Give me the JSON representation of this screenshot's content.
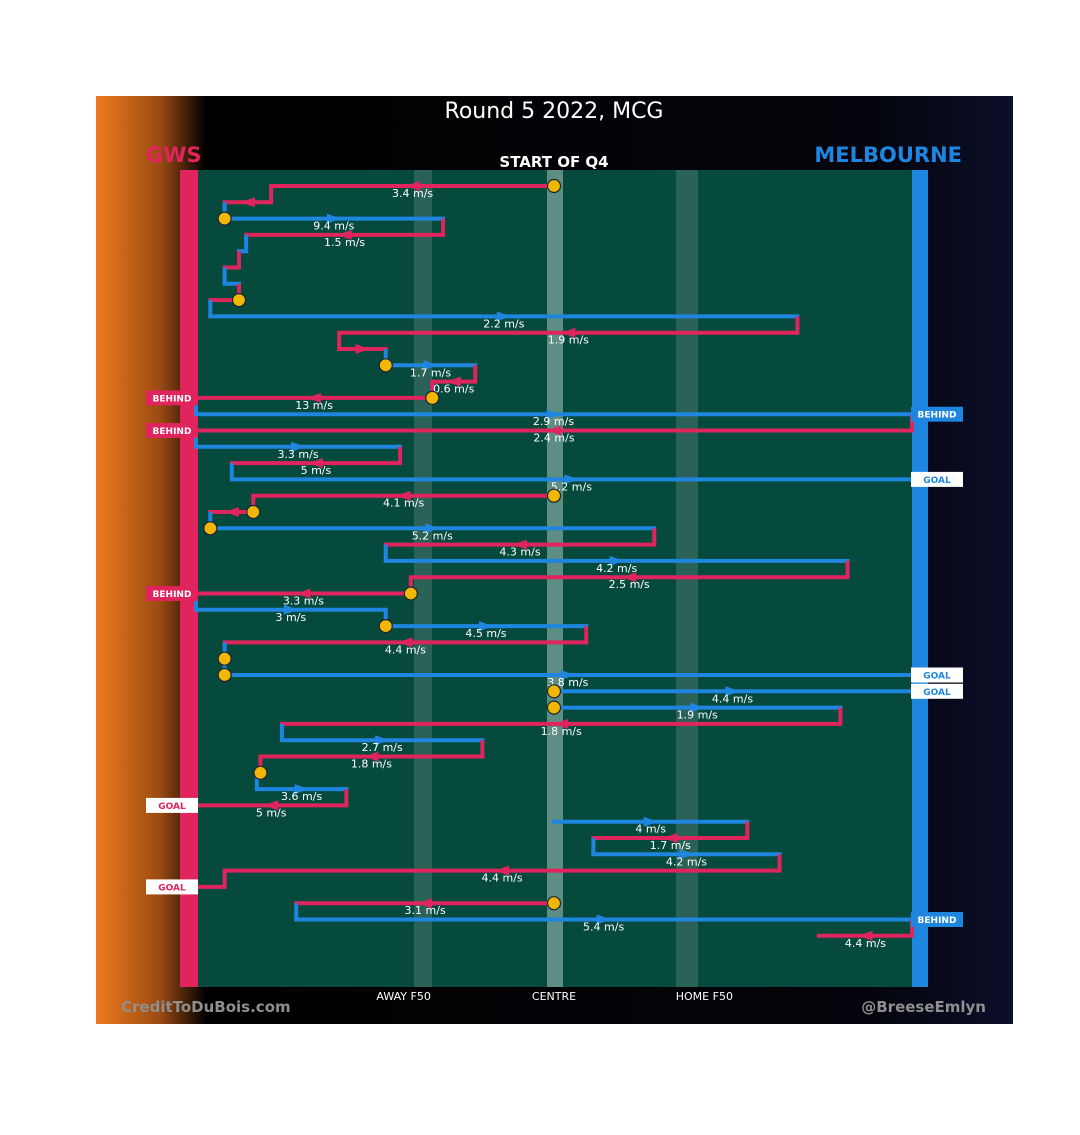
{
  "chart_data": {
    "type": "line",
    "title": "Round 5 2022, MCG",
    "subtitle": "START OF Q4",
    "teams": {
      "left": {
        "name": "GWS",
        "color": "#e0245e"
      },
      "right": {
        "name": "MELBOURNE",
        "color": "#1f86e0"
      }
    },
    "field_color": "#064a3e",
    "xlabel": "",
    "ylabel": "",
    "xlim": [
      0,
      100
    ],
    "x_ticks": [
      {
        "label": "AWAY F50",
        "x": 29
      },
      {
        "label": "CENTRE",
        "x": 50
      },
      {
        "label": "HOME F50",
        "x": 71
      }
    ],
    "grid": false,
    "credits": {
      "left": "CreditToDuBois.com",
      "right": "@BreeseEmlyn"
    },
    "series": [
      {
        "name": "GWS",
        "team": "left"
      },
      {
        "name": "MELBOURNE",
        "team": "right"
      }
    ],
    "chains": [
      {
        "team": "left",
        "from": 50,
        "to": 10.5,
        "speed_label": "3.4 m/s",
        "start_marker": true
      },
      {
        "team": "left",
        "from": 10.5,
        "to": 4,
        "speed_label": "",
        "start_marker": false
      },
      {
        "team": "right",
        "from": 4,
        "to": 34.5,
        "speed_label": "9.4 m/s",
        "start_marker": true
      },
      {
        "team": "left",
        "from": 34.5,
        "to": 7,
        "speed_label": "1.5 m/s",
        "start_marker": false
      },
      {
        "team": "right",
        "from": 7,
        "to": 6,
        "speed_label": "",
        "start_marker": false
      },
      {
        "team": "left",
        "from": 6,
        "to": 4,
        "speed_label": "",
        "start_marker": false
      },
      {
        "team": "right",
        "from": 4,
        "to": 6,
        "speed_label": "",
        "start_marker": false
      },
      {
        "team": "left",
        "from": 6,
        "to": 2,
        "speed_label": "",
        "start_marker": true
      },
      {
        "team": "right",
        "from": 2,
        "to": 84,
        "speed_label": "2.2 m/s",
        "start_marker": false
      },
      {
        "team": "left",
        "from": 84,
        "to": 20,
        "speed_label": "1.9 m/s",
        "start_marker": false
      },
      {
        "team": "left",
        "from": 20,
        "to": 26.5,
        "speed_label": "",
        "start_marker": false
      },
      {
        "team": "right",
        "from": 26.5,
        "to": 39,
        "speed_label": "1.7 m/s",
        "start_marker": true
      },
      {
        "team": "left",
        "from": 39,
        "to": 33,
        "speed_label": "0.6 m/s",
        "start_marker": false
      },
      {
        "team": "left",
        "from": 33,
        "to": -1,
        "speed_label": "13 m/s",
        "start_marker": true,
        "end_badge": "BEHIND"
      },
      {
        "team": "right",
        "from": 0,
        "to": 101,
        "speed_label": "2.9 m/s",
        "start_marker": false,
        "end_badge": "BEHIND"
      },
      {
        "team": "left",
        "from": 100,
        "to": -1,
        "speed_label": "2.4 m/s",
        "start_marker": false,
        "end_badge": "BEHIND"
      },
      {
        "team": "right",
        "from": 0,
        "to": 28.5,
        "speed_label": "3.3 m/s",
        "start_marker": false
      },
      {
        "team": "left",
        "from": 28.5,
        "to": 5,
        "speed_label": "5 m/s",
        "start_marker": false
      },
      {
        "team": "right",
        "from": 5,
        "to": 101,
        "speed_label": "5.2 m/s",
        "start_marker": false,
        "end_badge": "GOAL"
      },
      {
        "team": "left",
        "from": 50,
        "to": 8,
        "speed_label": "4.1 m/s",
        "start_marker": true
      },
      {
        "team": "left",
        "from": 8,
        "to": 2,
        "speed_label": "",
        "start_marker": true
      },
      {
        "team": "right",
        "from": 2,
        "to": 64,
        "speed_label": "5.2 m/s",
        "start_marker": true
      },
      {
        "team": "left",
        "from": 64,
        "to": 26.5,
        "speed_label": "4.3 m/s",
        "start_marker": false
      },
      {
        "team": "right",
        "from": 26.5,
        "to": 91,
        "speed_label": "4.2 m/s",
        "start_marker": false
      },
      {
        "team": "left",
        "from": 91,
        "to": 30,
        "speed_label": "2.5 m/s",
        "start_marker": false
      },
      {
        "team": "left",
        "from": 30,
        "to": -1,
        "speed_label": "3.3 m/s",
        "start_marker": true,
        "end_badge": "BEHIND"
      },
      {
        "team": "right",
        "from": 0,
        "to": 26.5,
        "speed_label": "3 m/s",
        "start_marker": false
      },
      {
        "team": "right",
        "from": 26.5,
        "to": 54.5,
        "speed_label": "4.5 m/s",
        "start_marker": true
      },
      {
        "team": "left",
        "from": 54.5,
        "to": 4,
        "speed_label": "4.4 m/s",
        "start_marker": false
      },
      {
        "team": "right",
        "from": 4,
        "to": 4,
        "speed_label": "",
        "start_marker": true
      },
      {
        "team": "right",
        "from": 4,
        "to": 101,
        "speed_label": "3.8 m/s",
        "start_marker": true,
        "end_badge": "GOAL"
      },
      {
        "team": "right",
        "from": 50,
        "to": 101,
        "speed_label": "4.4 m/s",
        "start_marker": true,
        "end_badge": "GOAL"
      },
      {
        "team": "right",
        "from": 50,
        "to": 90,
        "speed_label": "1.9 m/s",
        "start_marker": true
      },
      {
        "team": "left",
        "from": 90,
        "to": 12,
        "speed_label": "1.8 m/s",
        "start_marker": false
      },
      {
        "team": "right",
        "from": 12,
        "to": 40,
        "speed_label": "2.7 m/s",
        "start_marker": false
      },
      {
        "team": "left",
        "from": 40,
        "to": 9,
        "speed_label": "1.8 m/s",
        "start_marker": false
      },
      {
        "team": "left",
        "from": 9,
        "to": 8.5,
        "speed_label": "",
        "start_marker": true
      },
      {
        "team": "right",
        "from": 8.5,
        "to": 21,
        "speed_label": "3.6 m/s",
        "start_marker": false
      },
      {
        "team": "left",
        "from": 21,
        "to": -1,
        "speed_label": "5 m/s",
        "start_marker": false,
        "end_badge": "GOAL"
      },
      {
        "team": "right",
        "from": 50,
        "to": 77,
        "speed_label": "4 m/s",
        "start_marker": false
      },
      {
        "team": "left",
        "from": 77,
        "to": 55.5,
        "speed_label": "1.7 m/s",
        "start_marker": false
      },
      {
        "team": "right",
        "from": 55.5,
        "to": 81.5,
        "speed_label": "4.2 m/s",
        "start_marker": false
      },
      {
        "team": "left",
        "from": 81.5,
        "to": 4,
        "speed_label": "4.4 m/s",
        "start_marker": false
      },
      {
        "team": "left",
        "from": 4,
        "to": -1,
        "speed_label": "",
        "start_marker": false,
        "end_badge": "GOAL"
      },
      {
        "team": "left",
        "from": 50,
        "to": 14,
        "speed_label": "3.1 m/s",
        "start_marker": true
      },
      {
        "team": "right",
        "from": 14,
        "to": 101,
        "speed_label": "5.4 m/s",
        "start_marker": false,
        "end_badge": "BEHIND"
      },
      {
        "team": "left",
        "from": 100,
        "to": 87,
        "speed_label": "4.4 m/s",
        "start_marker": false
      }
    ]
  }
}
